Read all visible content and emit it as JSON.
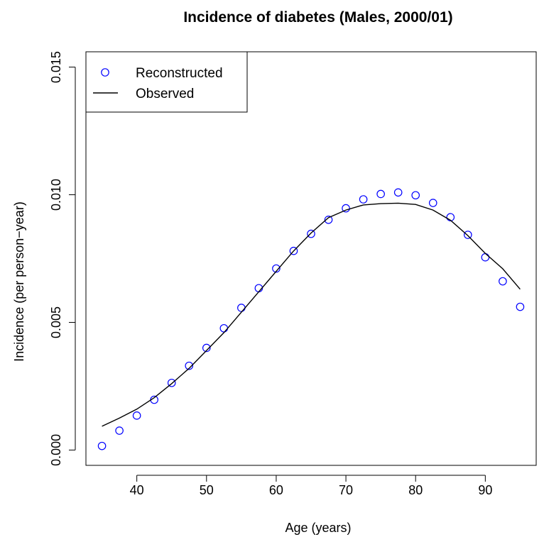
{
  "chart_data": {
    "type": "line",
    "title": "Incidence of diabetes (Males, 2000/01)",
    "xlabel": "Age (years)",
    "ylabel": "Incidence (per person−year)",
    "xlim": [
      32.7,
      97.3
    ],
    "ylim": [
      -0.0006,
      0.0156
    ],
    "x_ticks": [
      40,
      50,
      60,
      70,
      80,
      90
    ],
    "x_tick_labels": [
      "40",
      "50",
      "60",
      "70",
      "80",
      "90"
    ],
    "y_ticks": [
      0.0,
      0.005,
      0.01,
      0.015
    ],
    "y_tick_labels": [
      "0.000",
      "0.005",
      "0.010",
      "0.015"
    ],
    "grid": false,
    "legend_position": "top-left",
    "series": [
      {
        "name": "Reconstructed",
        "style": "points",
        "marker": "open-circle",
        "color": "#0000ff",
        "x": [
          35,
          37.5,
          40,
          42.5,
          45,
          47.5,
          50,
          52.5,
          55,
          57.5,
          60,
          62.5,
          65,
          67.5,
          70,
          72.5,
          75,
          77.5,
          80,
          82.5,
          85,
          87.5,
          90,
          92.5,
          95
        ],
        "values": [
          0.00016,
          0.00076,
          0.00135,
          0.00197,
          0.00263,
          0.0033,
          0.004,
          0.00477,
          0.00557,
          0.00634,
          0.00711,
          0.0078,
          0.00847,
          0.00902,
          0.00947,
          0.00982,
          0.01003,
          0.01009,
          0.00998,
          0.00968,
          0.00912,
          0.00843,
          0.00755,
          0.00661,
          0.00561
        ]
      },
      {
        "name": "Observed",
        "style": "line",
        "color": "#000000",
        "x": [
          35,
          37.5,
          40,
          42.5,
          45,
          47.5,
          50,
          52.5,
          55,
          57.5,
          60,
          62.5,
          65,
          67.5,
          70,
          72.5,
          75,
          77.5,
          80,
          82.5,
          85,
          87.5,
          90,
          92.5,
          95
        ],
        "values": [
          0.00093,
          0.00125,
          0.0016,
          0.00205,
          0.0026,
          0.0032,
          0.0039,
          0.0046,
          0.0054,
          0.0062,
          0.007,
          0.0078,
          0.0085,
          0.0091,
          0.0094,
          0.0096,
          0.00965,
          0.00967,
          0.00962,
          0.0094,
          0.009,
          0.0084,
          0.0077,
          0.0071,
          0.0063
        ]
      }
    ]
  }
}
